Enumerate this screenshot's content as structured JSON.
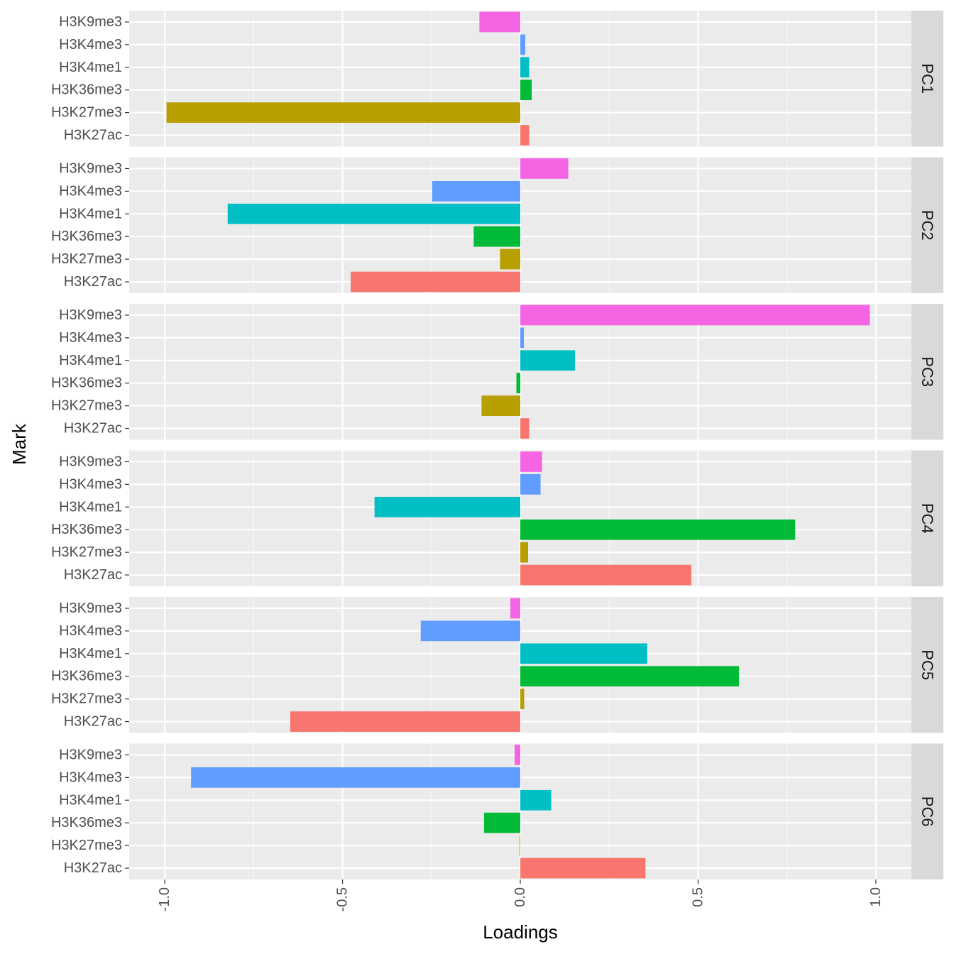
{
  "chart_data": {
    "type": "bar",
    "orientation": "horizontal",
    "facet_layout": "rows, strip on right",
    "xlabel": "Loadings",
    "ylabel": "Mark",
    "xlim": [
      -1.1,
      1.1
    ],
    "x_ticks": [
      -1.0,
      -0.5,
      0.0,
      0.5,
      1.0
    ],
    "x_tick_labels": [
      "-1.0",
      "-0.5",
      "0.0",
      "0.5",
      "1.0"
    ],
    "grid": true,
    "legend": "none",
    "categories": [
      "H3K9me3",
      "H3K4me3",
      "H3K4me1",
      "H3K36me3",
      "H3K27me3",
      "H3K27ac"
    ],
    "colors": {
      "H3K9me3": "#F564E3",
      "H3K4me3": "#619CFF",
      "H3K4me1": "#00BFC4",
      "H3K36me3": "#00BA38",
      "H3K27me3": "#B79F00",
      "H3K27ac": "#F8766D"
    },
    "panels": [
      {
        "name": "PC1",
        "values": [
          -0.115,
          0.014,
          0.025,
          0.032,
          -0.995,
          0.025
        ]
      },
      {
        "name": "PC2",
        "values": [
          0.135,
          -0.248,
          -0.823,
          -0.131,
          -0.057,
          -0.477
        ]
      },
      {
        "name": "PC3",
        "values": [
          0.983,
          0.01,
          0.154,
          -0.011,
          -0.109,
          0.025
        ]
      },
      {
        "name": "PC4",
        "values": [
          0.061,
          0.057,
          -0.41,
          0.773,
          0.022,
          0.481
        ]
      },
      {
        "name": "PC5",
        "values": [
          -0.028,
          -0.28,
          0.357,
          0.615,
          0.011,
          -0.647
        ]
      },
      {
        "name": "PC6",
        "values": [
          -0.016,
          -0.926,
          0.087,
          -0.102,
          -0.002,
          0.352
        ]
      }
    ]
  }
}
